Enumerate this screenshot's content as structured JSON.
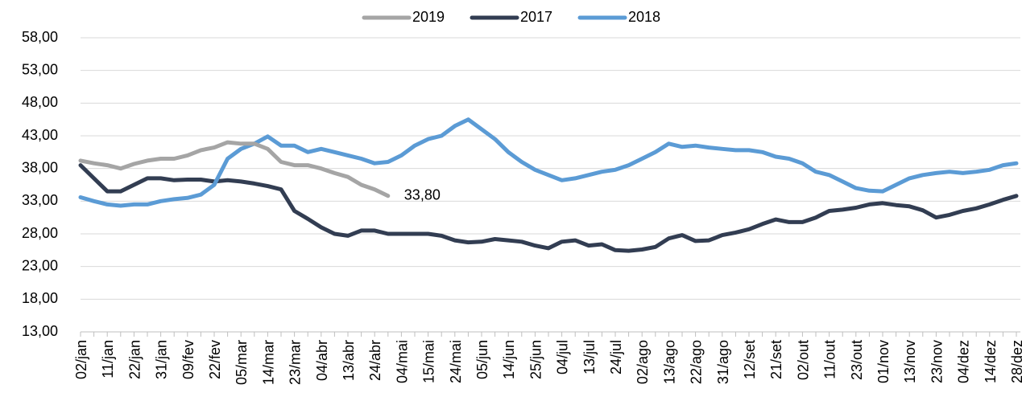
{
  "chart_data": {
    "type": "line",
    "categories": [
      "02/jan",
      null,
      "11/jan",
      null,
      "22/jan",
      null,
      "31/jan",
      null,
      "09/fev",
      null,
      "22/fev",
      null,
      "05/mar",
      null,
      "14/mar",
      null,
      "23/mar",
      null,
      "04/abr",
      null,
      "13/abr",
      null,
      "24/abr",
      null,
      "04/mai",
      null,
      "15/mai",
      null,
      "24/mai",
      null,
      "05/jun",
      null,
      "14/jun",
      null,
      "25/jun",
      null,
      "04/jul",
      null,
      "13/jul",
      null,
      "24/jul",
      null,
      "02/ago",
      null,
      "13/ago",
      null,
      "22/ago",
      null,
      "31/ago",
      null,
      "12/set",
      null,
      "21/set",
      null,
      "02/out",
      null,
      "11/out",
      null,
      "23/out",
      null,
      "01/nov",
      null,
      "13/nov",
      null,
      "23/nov",
      null,
      "04/dez",
      null,
      "14/dez",
      null,
      "28/dez"
    ],
    "series": [
      {
        "name": "2019",
        "color": "#a5a5a5",
        "values": [
          39.2,
          38.8,
          38.5,
          38.0,
          38.7,
          39.2,
          39.5,
          39.5,
          40.0,
          40.8,
          41.2,
          42.0,
          41.8,
          41.8,
          41.0,
          39.0,
          38.5,
          38.5,
          38.0,
          37.3,
          36.7,
          35.5,
          34.8,
          33.8,
          null,
          null,
          null,
          null,
          null,
          null,
          null,
          null,
          null,
          null,
          null,
          null,
          null,
          null,
          null,
          null,
          null,
          null,
          null,
          null,
          null,
          null,
          null,
          null,
          null,
          null,
          null,
          null,
          null,
          null,
          null,
          null,
          null,
          null,
          null,
          null,
          null,
          null,
          null,
          null,
          null,
          null,
          null,
          null,
          null,
          null,
          null
        ],
        "value_labels": [
          null,
          null,
          null,
          null,
          null,
          null,
          null,
          null,
          null,
          null,
          null,
          null,
          null,
          null,
          null,
          null,
          null,
          null,
          null,
          null,
          null,
          null,
          null,
          "33,80",
          null,
          null,
          null,
          null,
          null,
          null,
          null,
          null,
          null,
          null,
          null,
          null,
          null,
          null,
          null,
          null,
          null,
          null,
          null,
          null,
          null,
          null,
          null,
          null,
          null,
          null,
          null,
          null,
          null,
          null,
          null,
          null,
          null,
          null,
          null,
          null,
          null,
          null,
          null,
          null,
          null,
          null,
          null,
          null,
          null,
          null,
          null
        ]
      },
      {
        "name": "2017",
        "color": "#323d52",
        "values": [
          38.5,
          36.5,
          34.5,
          34.5,
          35.5,
          36.5,
          36.5,
          36.2,
          36.3,
          36.3,
          36.0,
          36.2,
          36.0,
          35.7,
          35.3,
          34.8,
          31.5,
          30.3,
          29.0,
          28.0,
          27.7,
          28.5,
          28.5,
          28.0,
          28.0,
          28.0,
          28.0,
          27.7,
          27.0,
          26.7,
          26.8,
          27.2,
          27.0,
          26.8,
          26.2,
          25.8,
          26.8,
          27.0,
          26.2,
          26.4,
          25.5,
          25.4,
          25.6,
          26.0,
          27.3,
          27.8,
          26.9,
          27.0,
          27.8,
          28.2,
          28.7,
          29.5,
          30.2,
          29.8,
          29.8,
          30.5,
          31.5,
          31.7,
          32.0,
          32.5,
          32.7,
          32.4,
          32.2,
          31.6,
          30.5,
          30.9,
          31.5,
          31.9,
          32.5,
          33.2,
          33.8
        ]
      },
      {
        "name": "2018",
        "color": "#5b9bd5",
        "values": [
          33.6,
          33.0,
          32.5,
          32.3,
          32.5,
          32.5,
          33.0,
          33.3,
          33.5,
          34.0,
          35.5,
          39.5,
          41.0,
          41.8,
          42.9,
          41.5,
          41.5,
          40.5,
          41.0,
          40.5,
          40.0,
          39.5,
          38.8,
          39.0,
          40.0,
          41.5,
          42.5,
          43.0,
          44.5,
          45.5,
          44.0,
          42.5,
          40.5,
          39.0,
          37.8,
          37.0,
          36.2,
          36.5,
          37.0,
          37.5,
          37.8,
          38.5,
          39.5,
          40.5,
          41.8,
          41.3,
          41.5,
          41.2,
          41.0,
          40.8,
          40.8,
          40.5,
          39.8,
          39.5,
          38.8,
          37.5,
          37.0,
          36.0,
          35.0,
          34.6,
          34.5,
          35.5,
          36.5,
          37.0,
          37.3,
          37.5,
          37.3,
          37.5,
          37.8,
          38.5,
          38.8
        ]
      }
    ],
    "ylim": [
      13,
      58
    ],
    "yticks": [
      {
        "value": 13,
        "label": "13,00"
      },
      {
        "value": 18,
        "label": "18,00"
      },
      {
        "value": 23,
        "label": "23,00"
      },
      {
        "value": 28,
        "label": "28,00"
      },
      {
        "value": 33,
        "label": "33,00"
      },
      {
        "value": 38,
        "label": "38,00"
      },
      {
        "value": 43,
        "label": "43,00"
      },
      {
        "value": 48,
        "label": "48,00"
      },
      {
        "value": 53,
        "label": "53,00"
      },
      {
        "value": 58,
        "label": "58,00"
      }
    ],
    "grid": true,
    "legend": "top"
  }
}
